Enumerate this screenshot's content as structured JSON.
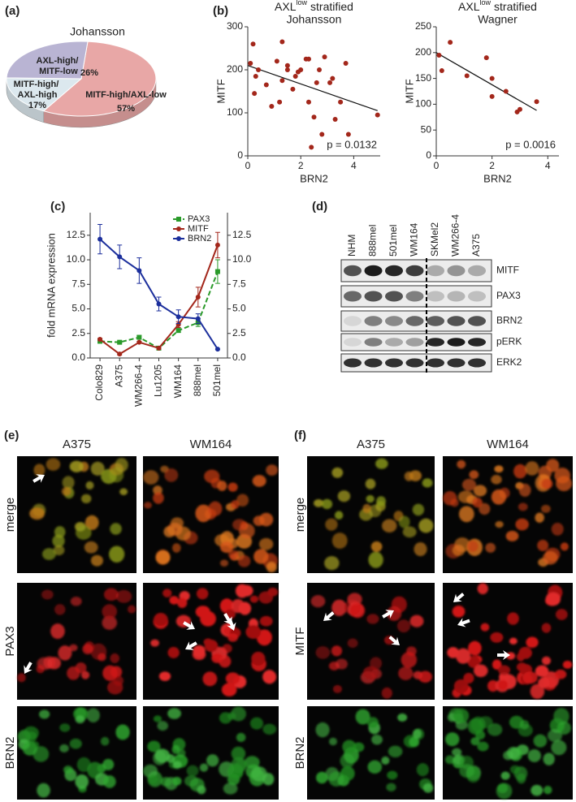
{
  "chart_data": [
    {
      "type": "pie",
      "panel_label": "(a)",
      "title": "Johansson",
      "categories": [
        "MITF-high/AXL-low",
        "MITF-high/ AXL-high",
        "AXL-high/ MITF-low"
      ],
      "values": [
        57,
        17,
        26
      ],
      "value_labels": [
        "57%",
        "17%",
        "26%"
      ],
      "colors": [
        "#e8a7a6",
        "#dce8ee",
        "#b9b4d3"
      ]
    },
    {
      "type": "scatter",
      "panel_label": "(b)",
      "title_parts": [
        "AXL",
        "low",
        "stratified"
      ],
      "subtitle": "Johansson",
      "x_label": "BRN2",
      "y_label": "MITF",
      "annotation": "p = 0.0132",
      "color": "#a3271b",
      "x": [
        0.1,
        0.2,
        0.3,
        0.25,
        0.4,
        0.9,
        0.7,
        1.1,
        1.2,
        1.3,
        1.3,
        1.5,
        1.5,
        1.7,
        1.8,
        1.9,
        2.0,
        2.2,
        2.3,
        2.3,
        2.4,
        2.5,
        2.6,
        2.7,
        2.8,
        2.9,
        3.1,
        3.2,
        3.3,
        3.5,
        3.7,
        3.8,
        4.9
      ],
      "y": [
        215,
        260,
        185,
        145,
        200,
        115,
        165,
        220,
        125,
        265,
        175,
        210,
        200,
        155,
        185,
        195,
        200,
        225,
        125,
        225,
        20,
        90,
        170,
        200,
        50,
        230,
        170,
        180,
        85,
        125,
        215,
        50,
        95
      ],
      "trend_x": [
        0,
        4.9
      ],
      "trend_y": [
        210,
        105
      ],
      "xlim": [
        0,
        5
      ],
      "xticks": [
        0,
        2,
        4
      ],
      "ylim": [
        0,
        300
      ],
      "yticks": [
        0,
        100,
        200,
        300
      ]
    },
    {
      "type": "scatter",
      "title_parts": [
        "AXL",
        "low",
        "stratified"
      ],
      "subtitle": "Wagner",
      "x_label": "BRN2",
      "y_label": "MITF",
      "annotation": "p = 0.0016",
      "color": "#a3271b",
      "x": [
        0.1,
        0.2,
        0.5,
        1.1,
        1.8,
        2.0,
        2.0,
        2.5,
        2.9,
        3.0,
        3.6
      ],
      "y": [
        195,
        165,
        220,
        155,
        190,
        150,
        115,
        125,
        85,
        90,
        105
      ],
      "trend_x": [
        0,
        3.6
      ],
      "trend_y": [
        200,
        88
      ],
      "xlim": [
        0,
        4.4
      ],
      "xticks": [
        0,
        2,
        4
      ],
      "ylim": [
        0,
        250
      ],
      "yticks": [
        0,
        50,
        100,
        150,
        200,
        250
      ]
    },
    {
      "type": "line",
      "panel_label": "(c)",
      "y_label": "fold mRNA expression",
      "categories": [
        "Colo829",
        "A375",
        "WM266-4",
        "Lu1205",
        "WM164",
        "888mel",
        "501mel"
      ],
      "series": [
        {
          "name": "PAX3",
          "color": "#2a9a2a",
          "linestyle": "dashed",
          "marker": "square",
          "values": [
            1.7,
            1.6,
            2.1,
            1.0,
            2.8,
            3.6,
            8.8
          ],
          "errors": [
            0.1,
            0.1,
            0.2,
            0.1,
            0.2,
            0.4,
            1.2
          ]
        },
        {
          "name": "MITF",
          "color": "#a3271b",
          "linestyle": "solid",
          "marker": "circle",
          "values": [
            1.9,
            0.4,
            1.6,
            1.0,
            3.4,
            6.2,
            11.5
          ],
          "errors": [
            0.1,
            0.1,
            0.1,
            0.1,
            0.3,
            1.0,
            1.3
          ]
        },
        {
          "name": "BRN2",
          "color": "#1c2f9c",
          "linestyle": "solid",
          "marker": "circle",
          "values": [
            12.1,
            10.3,
            8.9,
            5.5,
            4.2,
            4.0,
            0.9
          ],
          "errors": [
            1.5,
            1.2,
            1.3,
            0.7,
            0.7,
            0.5,
            0
          ]
        }
      ],
      "ylim": [
        0,
        14.8
      ],
      "yticks": [
        {
          "value": 0,
          "label": "0.0"
        },
        2.5,
        {
          "value": 5,
          "label": "5.0"
        },
        7.5,
        {
          "value": 10,
          "label": "10.0"
        },
        12.5
      ],
      "y2lim": [
        0,
        14.8
      ],
      "y2ticks": [
        {
          "value": 0,
          "label": "0.0"
        },
        2.5,
        {
          "value": 5,
          "label": "5.0"
        },
        7.5,
        {
          "value": 10,
          "label": "10.0"
        },
        12.5
      ]
    }
  ],
  "blot": {
    "panel_label": "(d)",
    "lanes": [
      "NHM",
      "888mel",
      "501mel",
      "WM164",
      "SKMel2",
      "WM266-4",
      "A375"
    ],
    "bands": [
      "MITF",
      "PAX3",
      "BRN2",
      "pERK",
      "ERK2"
    ]
  },
  "micrographs": [
    {
      "panel_label": "(e)",
      "columns": [
        "A375",
        "WM164"
      ],
      "rows": [
        "merge",
        "PAX3",
        "BRN2"
      ]
    },
    {
      "panel_label": "(f)",
      "columns": [
        "A375",
        "WM164"
      ],
      "rows": [
        "merge",
        "MITF",
        "BRN2"
      ]
    }
  ]
}
